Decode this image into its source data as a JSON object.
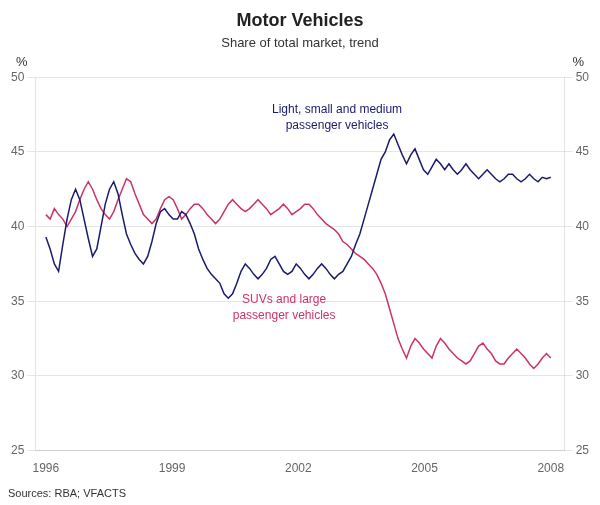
{
  "chart_data": {
    "type": "line",
    "title": "Motor Vehicles",
    "subtitle": "Share of total market, trend",
    "ylabel": "%",
    "y2label": "%",
    "source": "Sources: RBA; VFACTS",
    "x": [
      1996,
      1996.1008,
      1996.2017,
      1996.3025,
      1996.4034,
      1996.5042,
      1996.605,
      1996.7059,
      1996.8067,
      1996.9076,
      1997.0084,
      1997.1092,
      1997.2101,
      1997.3109,
      1997.4118,
      1997.5126,
      1997.6134,
      1997.7143,
      1997.8151,
      1997.916,
      1998.0168,
      1998.1176,
      1998.2185,
      1998.3193,
      1998.4202,
      1998.521,
      1998.6218,
      1998.7227,
      1998.8235,
      1998.9244,
      1999.0252,
      1999.1261,
      1999.2269,
      1999.3277,
      1999.4286,
      1999.5294,
      1999.6303,
      1999.7311,
      1999.8319,
      1999.9328,
      2000.0336,
      2000.1345,
      2000.2353,
      2000.3361,
      2000.437,
      2000.5378,
      2000.6387,
      2000.7395,
      2000.8403,
      2000.9412,
      2001.042,
      2001.1429,
      2001.2437,
      2001.3445,
      2001.4454,
      2001.5462,
      2001.6471,
      2001.7479,
      2001.8487,
      2001.9496,
      2002.0504,
      2002.1513,
      2002.2521,
      2002.3529,
      2002.4538,
      2002.5546,
      2002.6555,
      2002.7563,
      2002.8571,
      2002.958,
      2003.0588,
      2003.1597,
      2003.2605,
      2003.3613,
      2003.4622,
      2003.563,
      2003.6639,
      2003.7647,
      2003.8655,
      2003.9664,
      2004.0672,
      2004.1681,
      2004.2689,
      2004.3697,
      2004.4706,
      2004.5714,
      2004.6723,
      2004.7731,
      2004.8739,
      2004.9748,
      2005.0756,
      2005.1765,
      2005.2773,
      2005.3782,
      2005.479,
      2005.5798,
      2005.6807,
      2005.7815,
      2005.8824,
      2005.9832,
      2006.084,
      2006.1849,
      2006.2857,
      2006.3866,
      2006.4874,
      2006.5882,
      2006.6891,
      2006.7899,
      2006.8908,
      2006.9916,
      2007.0924,
      2007.1933,
      2007.2941,
      2007.395,
      2007.4958,
      2007.5966,
      2007.6975,
      2007.7983,
      2007.8992,
      2008
    ],
    "series": [
      {
        "name": "Light, small and medium\npassenger vehicles",
        "color": "#1a1a6e",
        "values": [
          39.3,
          38.5,
          37.5,
          37.0,
          38.8,
          40.5,
          41.8,
          42.5,
          41.8,
          40.5,
          39.2,
          38.0,
          38.5,
          40.0,
          41.5,
          42.5,
          43.0,
          42.2,
          40.8,
          39.5,
          38.8,
          38.2,
          37.8,
          37.5,
          38.0,
          39.0,
          40.2,
          41.0,
          41.2,
          40.8,
          40.5,
          40.5,
          41.0,
          40.8,
          40.2,
          39.5,
          38.5,
          37.8,
          37.2,
          36.8,
          36.5,
          36.2,
          35.5,
          35.2,
          35.5,
          36.2,
          37.0,
          37.5,
          37.2,
          36.8,
          36.5,
          36.8,
          37.2,
          37.8,
          38.0,
          37.5,
          37.0,
          36.8,
          37.0,
          37.5,
          37.2,
          36.8,
          36.5,
          36.8,
          37.2,
          37.5,
          37.2,
          36.8,
          36.5,
          36.8,
          37.0,
          37.5,
          38.0,
          38.8,
          39.5,
          40.5,
          41.5,
          42.5,
          43.5,
          44.5,
          45.0,
          45.8,
          46.2,
          45.5,
          44.8,
          44.2,
          44.8,
          45.2,
          44.5,
          43.8,
          43.5,
          44.0,
          44.5,
          44.2,
          43.8,
          44.2,
          43.8,
          43.5,
          43.8,
          44.2,
          43.8,
          43.5,
          43.2,
          43.5,
          43.8,
          43.5,
          43.2,
          43.0,
          43.2,
          43.5,
          43.5,
          43.2,
          43.0,
          43.2,
          43.5,
          43.2,
          43.0,
          43.3,
          43.2,
          43.3
        ]
      },
      {
        "name": "SUVs and large\npassenger vehicles",
        "color": "#cc3366",
        "values": [
          40.8,
          40.5,
          41.2,
          40.8,
          40.5,
          40.0,
          40.5,
          41.0,
          41.8,
          42.5,
          43.0,
          42.5,
          41.8,
          41.2,
          40.8,
          40.5,
          41.0,
          41.8,
          42.5,
          43.2,
          43.0,
          42.2,
          41.5,
          40.8,
          40.5,
          40.2,
          40.5,
          41.2,
          41.8,
          42.0,
          41.8,
          41.2,
          40.5,
          40.8,
          41.2,
          41.5,
          41.5,
          41.2,
          40.8,
          40.5,
          40.2,
          40.5,
          41.0,
          41.5,
          41.8,
          41.5,
          41.2,
          41.0,
          41.2,
          41.5,
          41.8,
          41.5,
          41.2,
          40.8,
          41.0,
          41.2,
          41.5,
          41.2,
          40.8,
          41.0,
          41.2,
          41.5,
          41.5,
          41.2,
          40.8,
          40.5,
          40.2,
          40.0,
          39.8,
          39.5,
          39.0,
          38.8,
          38.5,
          38.2,
          38.0,
          37.8,
          37.5,
          37.2,
          36.8,
          36.2,
          35.5,
          34.5,
          33.5,
          32.5,
          31.8,
          31.2,
          32.0,
          32.5,
          32.2,
          31.8,
          31.5,
          31.2,
          32.0,
          32.5,
          32.2,
          31.8,
          31.5,
          31.2,
          31.0,
          30.8,
          31.0,
          31.5,
          32.0,
          32.2,
          31.8,
          31.5,
          31.0,
          30.8,
          30.8,
          31.2,
          31.5,
          31.8,
          31.5,
          31.2,
          30.8,
          30.5,
          30.8,
          31.2,
          31.5,
          31.2
        ]
      }
    ],
    "xlim": [
      1995.75,
      2008.33
    ],
    "xticks": [
      1996,
      1999,
      2002,
      2005,
      2008
    ],
    "ylim": [
      25,
      50
    ],
    "yticks": [
      25,
      30,
      35,
      40,
      45,
      50
    ],
    "y2lim": [
      25,
      50
    ],
    "y2ticks": [
      25,
      30,
      35,
      40,
      45,
      50
    ],
    "grid": "y"
  }
}
